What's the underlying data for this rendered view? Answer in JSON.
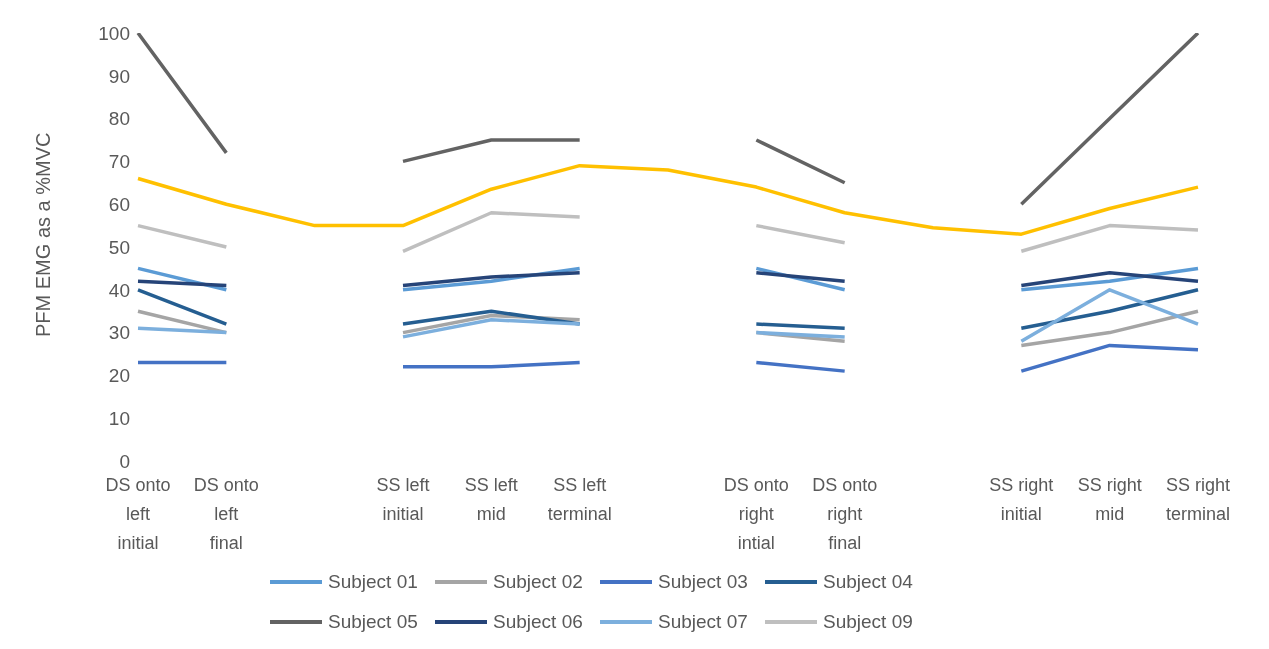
{
  "chart_data": {
    "type": "line",
    "ylabel": "PFM EMG as a %MVC",
    "categories": [
      "DS onto left initial",
      "DS onto left final",
      null,
      "SS left initial",
      "SS left mid",
      "SS left terminal",
      null,
      "DS onto right intial",
      "DS onto right final",
      null,
      "SS right initial",
      "SS right mid",
      "SS right terminal"
    ],
    "ylim": [
      0,
      100
    ],
    "yticks": [
      0,
      10,
      20,
      30,
      40,
      50,
      60,
      70,
      80,
      90,
      100
    ],
    "grid": false,
    "legend": "bottom",
    "marker": "none",
    "series": [
      {
        "name": "Subject 01",
        "color": "#5b9bd5",
        "values": [
          45,
          40,
          null,
          40,
          42,
          45,
          null,
          45,
          40,
          null,
          40,
          42,
          45
        ]
      },
      {
        "name": "Subject 02",
        "color": "#a5a5a5",
        "values": [
          35,
          30,
          null,
          30,
          34,
          33,
          null,
          30,
          28,
          null,
          27,
          30,
          35
        ]
      },
      {
        "name": "Subject 03",
        "color": "#4472c4",
        "values": [
          23,
          23,
          null,
          22,
          22,
          23,
          null,
          23,
          21,
          null,
          21,
          27,
          26
        ]
      },
      {
        "name": "Subject 04",
        "color": "#255e91",
        "values": [
          40,
          32,
          null,
          32,
          35,
          32,
          null,
          32,
          31,
          null,
          31,
          35,
          40
        ]
      },
      {
        "name": "Subject 05",
        "color": "#636363",
        "values": [
          100,
          72,
          null,
          70,
          75,
          75,
          null,
          75,
          65,
          null,
          60,
          80,
          100
        ]
      },
      {
        "name": "Subject 06",
        "color": "#264478",
        "values": [
          42,
          41,
          null,
          41,
          43,
          44,
          null,
          44,
          42,
          null,
          41,
          44,
          42
        ]
      },
      {
        "name": "Subject 07",
        "color": "#7cafdd",
        "values": [
          31,
          30,
          null,
          29,
          33,
          32,
          null,
          30,
          29,
          null,
          28,
          40,
          32
        ]
      },
      {
        "name": "Subject 09",
        "color": "#bfbfbf",
        "values": [
          55,
          50,
          null,
          49,
          58,
          57,
          null,
          55,
          51,
          null,
          49,
          55,
          54
        ]
      },
      {
        "color": "#ffc000",
        "values": [
          66,
          60,
          55,
          55,
          63.5,
          69,
          68,
          64,
          58,
          54.5,
          53,
          59,
          64
        ]
      }
    ]
  }
}
